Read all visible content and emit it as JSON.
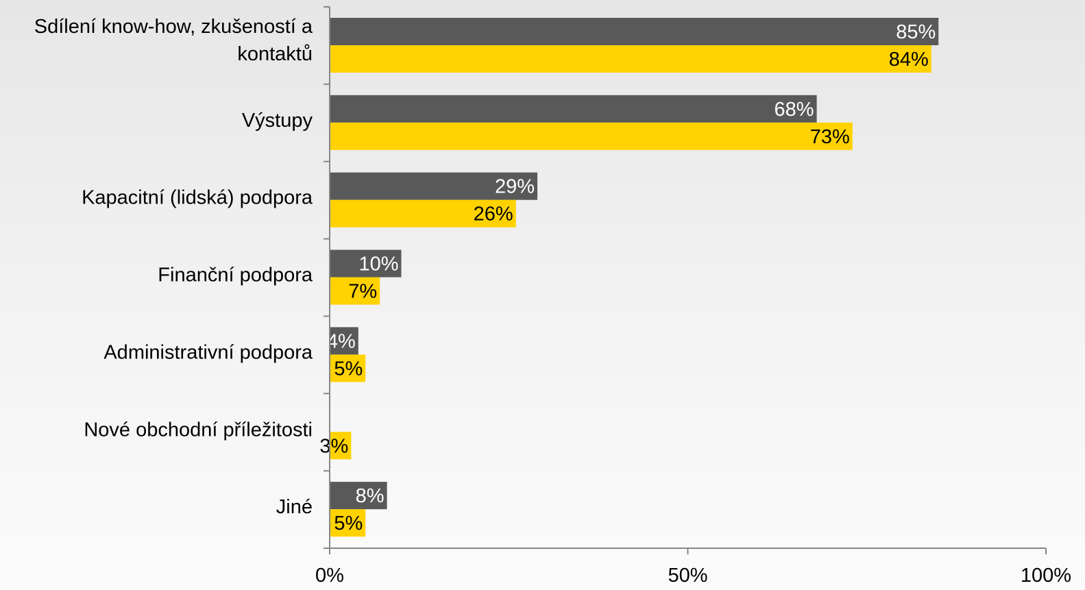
{
  "chart_data": {
    "type": "bar",
    "orientation": "horizontal",
    "categories": [
      [
        "Sdílení know-how, zkušeností a",
        "kontaktů"
      ],
      [
        "Výstupy"
      ],
      [
        "Kapacitní (lidská) podpora"
      ],
      [
        "Finanční podpora"
      ],
      [
        "Administrativní podpora"
      ],
      [
        "Nové obchodní příležitosti"
      ],
      [
        "Jiné"
      ]
    ],
    "series": [
      {
        "color": "#595959",
        "label_color": "#ffffff",
        "values": [
          85,
          68,
          29,
          10,
          4,
          null,
          8
        ],
        "labels": [
          "85%",
          "68%",
          "29%",
          "10%",
          "4%",
          "",
          "8%"
        ]
      },
      {
        "color": "#ffd200",
        "label_color": "#000000",
        "values": [
          84,
          73,
          26,
          7,
          5,
          3,
          5
        ],
        "labels": [
          "84%",
          "73%",
          "26%",
          "7%",
          "5%",
          "3%",
          "5%"
        ]
      }
    ],
    "xlim": [
      0,
      100
    ],
    "x_ticks": [
      0,
      50,
      100
    ],
    "x_tick_labels": [
      "0%",
      "50%",
      "100%"
    ],
    "grid": false,
    "legend": "none"
  }
}
